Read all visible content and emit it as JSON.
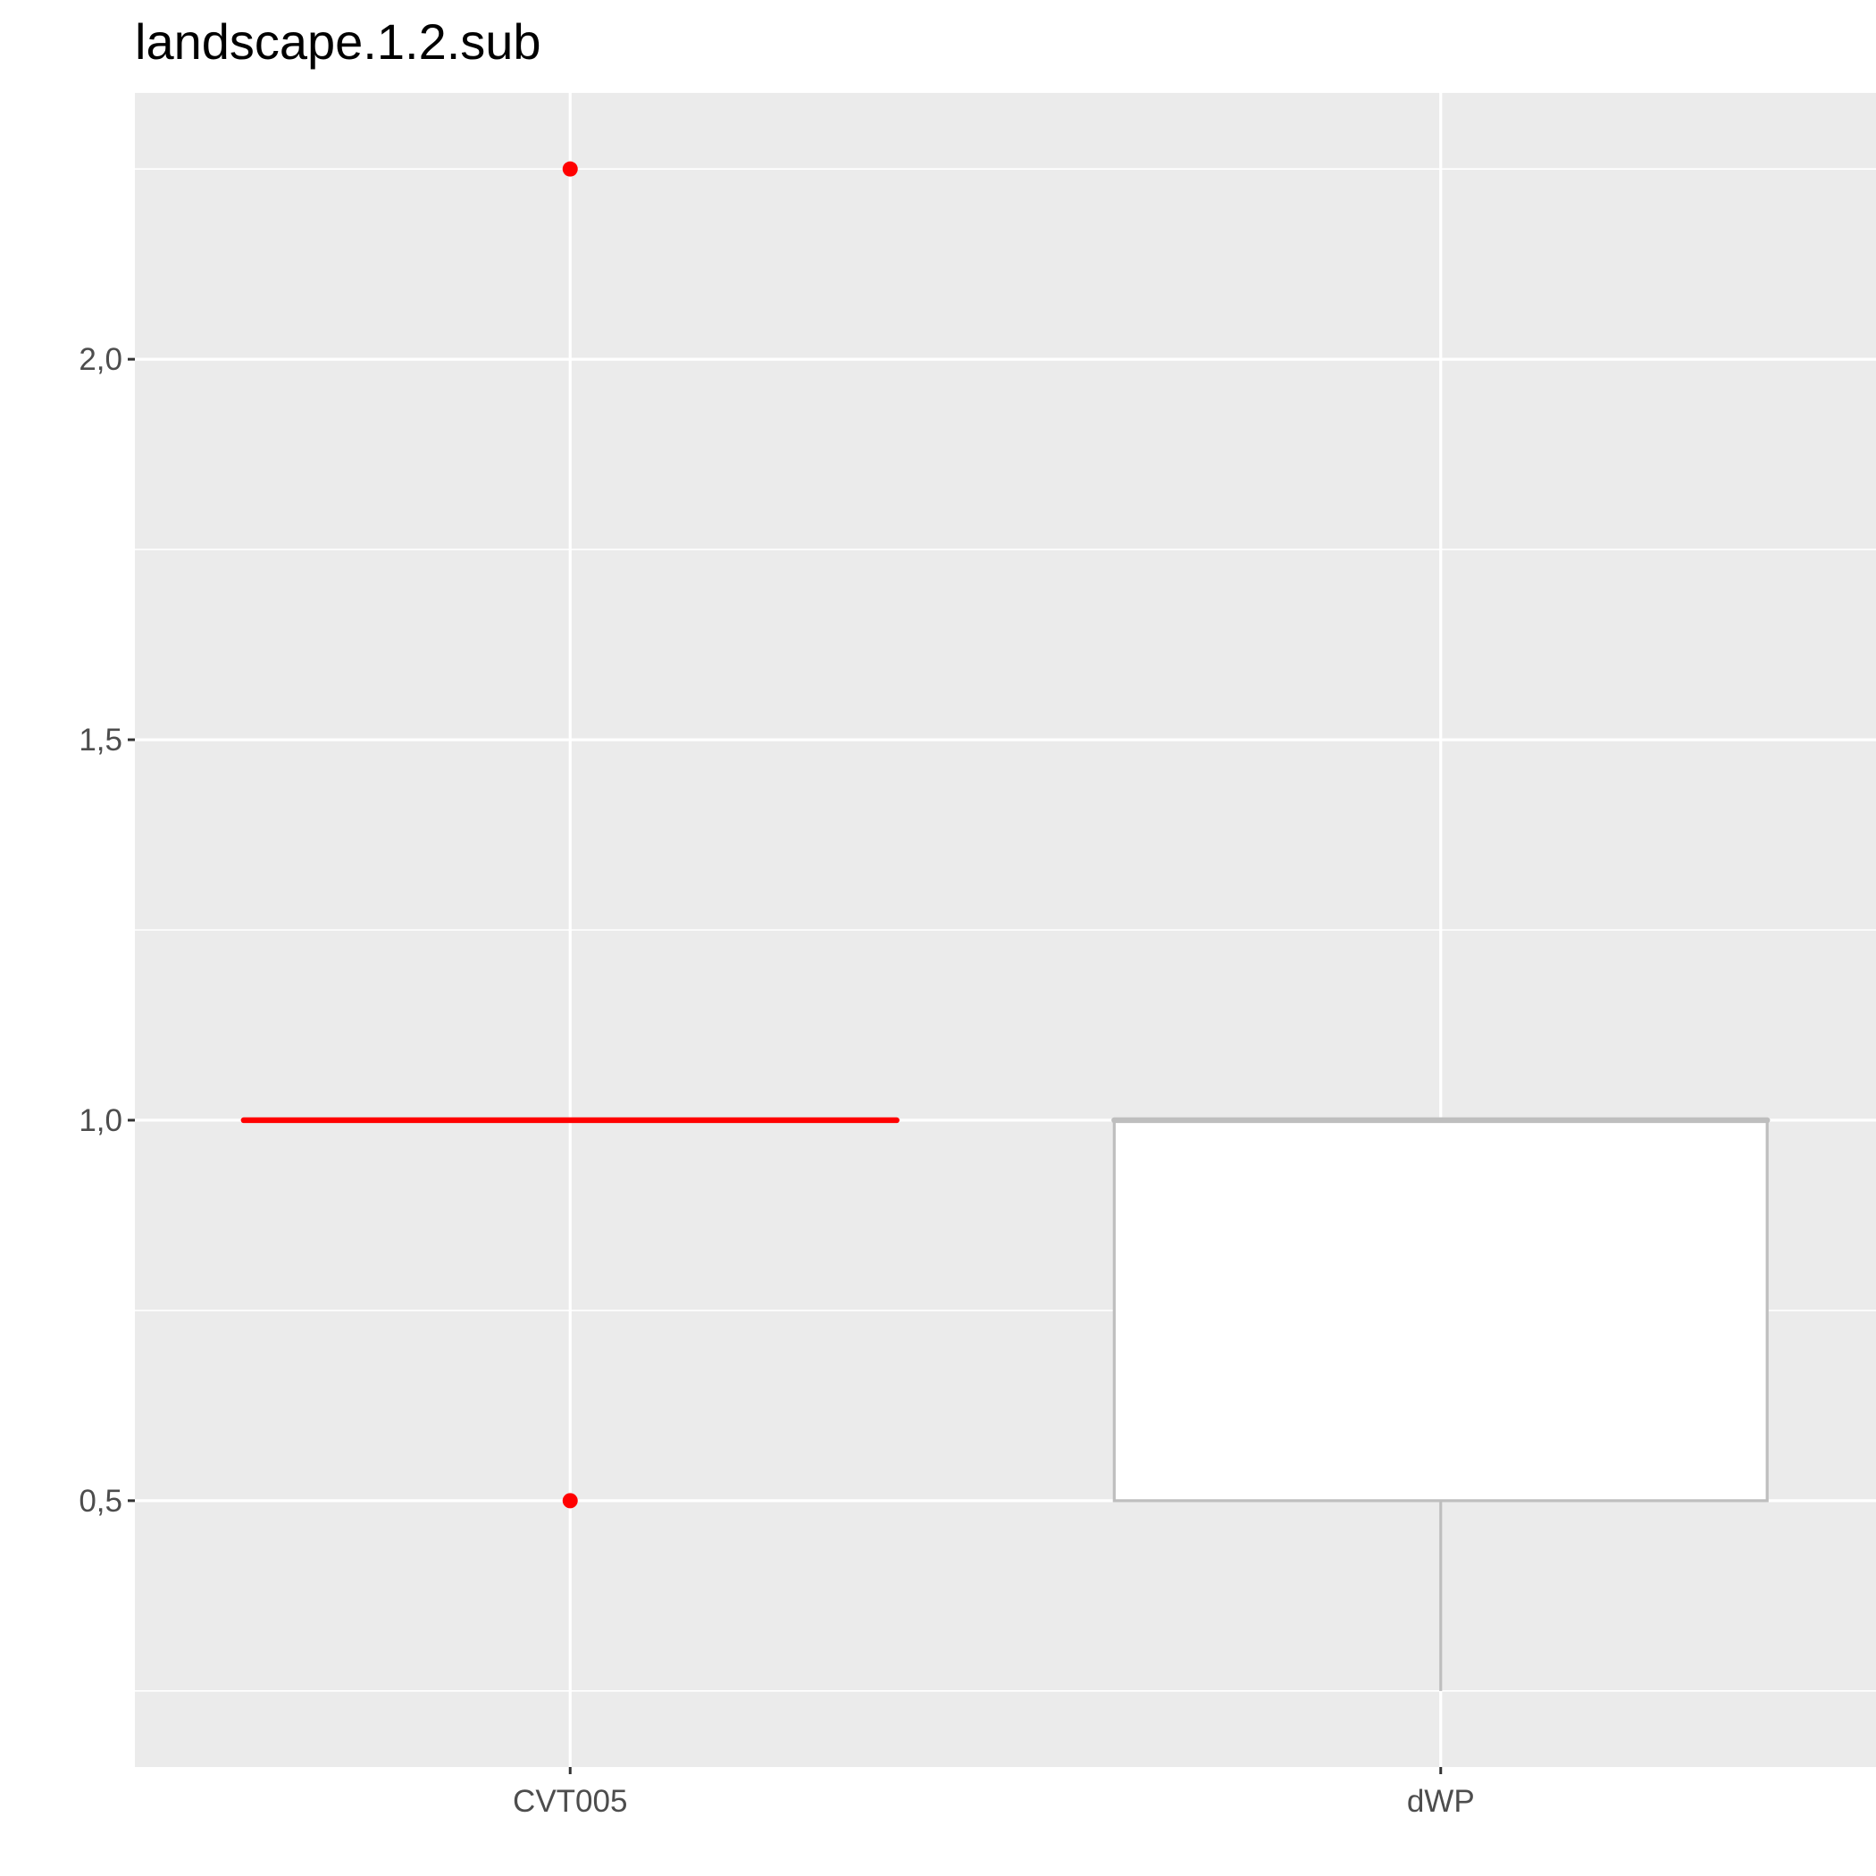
{
  "chart_data": {
    "type": "box",
    "title": "landscape.1.2.sub",
    "xlabel": "",
    "ylabel": "",
    "categories": [
      "CVT005",
      "dWP"
    ],
    "y_ticks": [
      0.5,
      1.0,
      1.5,
      2.0
    ],
    "y_tick_labels": [
      "0,5",
      "1,0",
      "1,5",
      "2,0"
    ],
    "ylim": [
      0.15,
      2.35
    ],
    "grid": true,
    "boxes": [
      {
        "category": "CVT005",
        "lower_whisker": 1.0,
        "q1": 1.0,
        "median": 1.0,
        "q3": 1.0,
        "upper_whisker": 1.0,
        "outliers": [
          2.25,
          0.5
        ],
        "color": "#ff0000"
      },
      {
        "category": "dWP",
        "lower_whisker": 0.25,
        "q1": 0.5,
        "median": 1.0,
        "q3": 1.0,
        "upper_whisker": 1.0,
        "outliers": [],
        "color": "#bebebe"
      }
    ],
    "colors": {
      "panel_background": "#ebebeb",
      "grid": "#ffffff",
      "box_fill": "#ffffff"
    }
  }
}
